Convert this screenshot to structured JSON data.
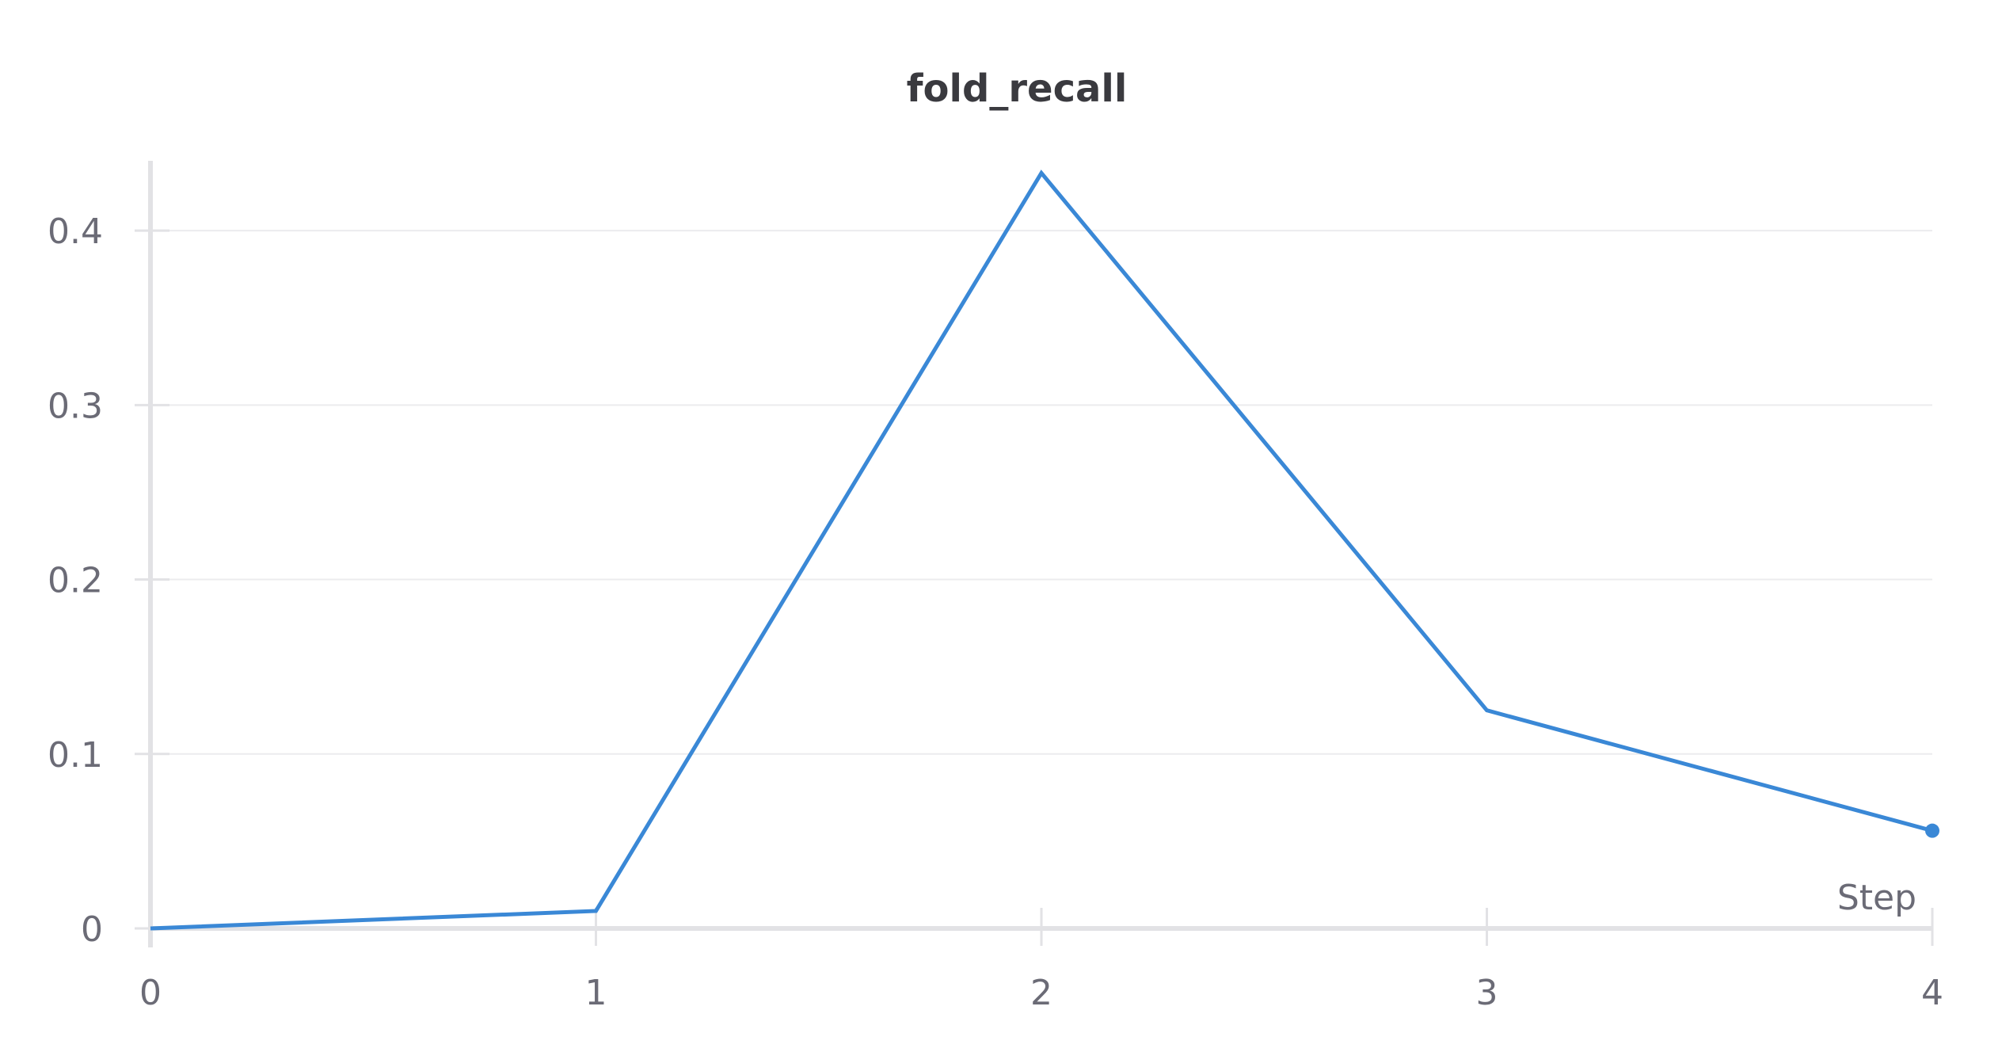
{
  "colors": {
    "series": "#3a88d6",
    "axis": "#e2e2e5",
    "grid": "#ececee",
    "text": "#6b6b76",
    "title": "#3a3a3f"
  },
  "chart_data": {
    "type": "line",
    "title": "fold_recall",
    "xlabel": "Step",
    "ylabel": "",
    "xlim": [
      0,
      4
    ],
    "ylim": [
      0,
      0.44
    ],
    "x_ticks": [
      0,
      1,
      2,
      3,
      4
    ],
    "x_tick_labels": [
      "0",
      "1",
      "2",
      "3",
      "4"
    ],
    "y_ticks": [
      0,
      0.1,
      0.2,
      0.3,
      0.4
    ],
    "y_tick_labels": [
      "0",
      "0.1",
      "0.2",
      "0.3",
      "0.4"
    ],
    "grid": true,
    "legend": "none",
    "series": [
      {
        "x": [
          0,
          1,
          2,
          3,
          4
        ],
        "values": [
          0,
          0.01,
          0.433,
          0.125,
          0.056
        ]
      }
    ]
  }
}
